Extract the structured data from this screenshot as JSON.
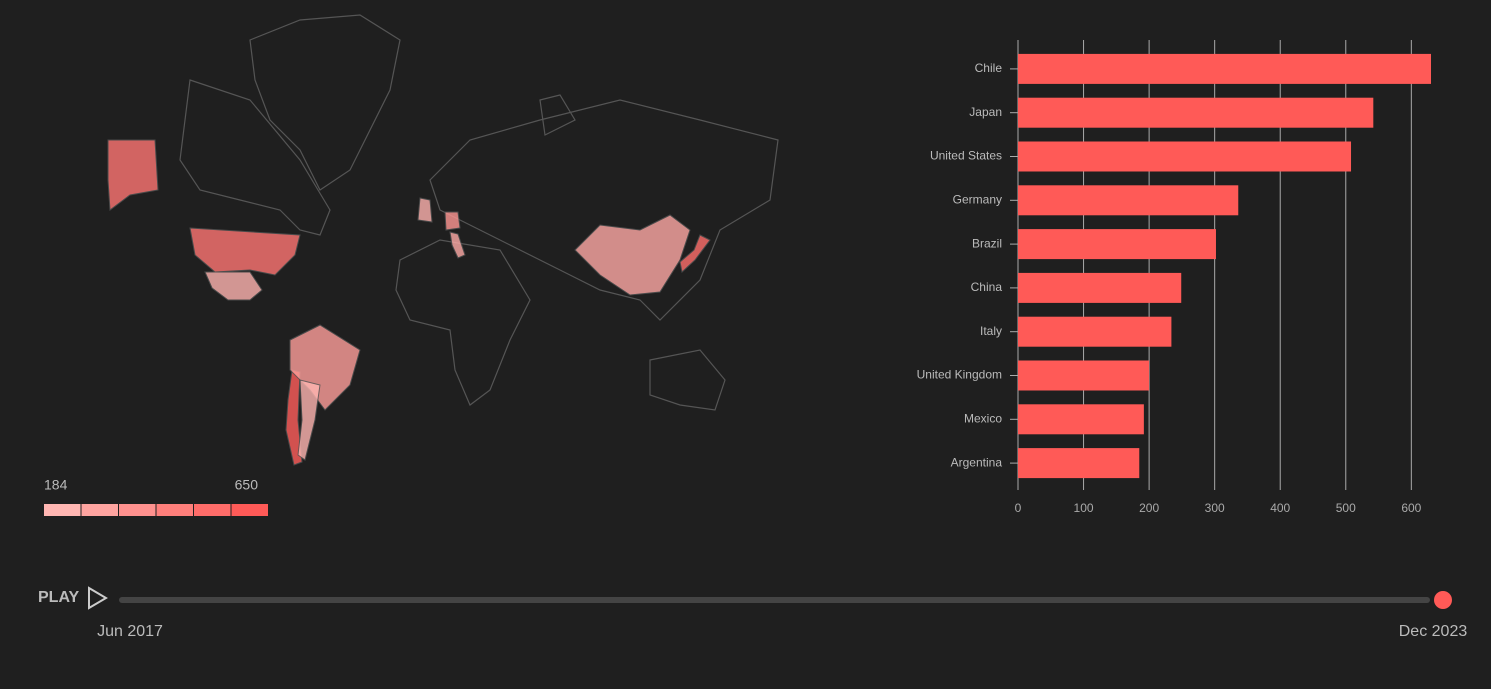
{
  "chart_data": {
    "type": "bar",
    "categories": [
      "Chile",
      "Japan",
      "United States",
      "Germany",
      "Brazil",
      "China",
      "Italy",
      "United Kingdom",
      "Mexico",
      "Argentina"
    ],
    "values": [
      630,
      542,
      508,
      336,
      302,
      249,
      234,
      200,
      192,
      185
    ],
    "color": "#ff5a57",
    "xlim": [
      0,
      630
    ],
    "xticks": [
      0,
      100,
      200,
      300,
      400,
      500,
      600
    ],
    "grid": true
  },
  "map_legend": {
    "min": 184,
    "max": 650
  },
  "player": {
    "button": "PLAY",
    "start": "Jun 2017",
    "end": "Dec 2023"
  }
}
